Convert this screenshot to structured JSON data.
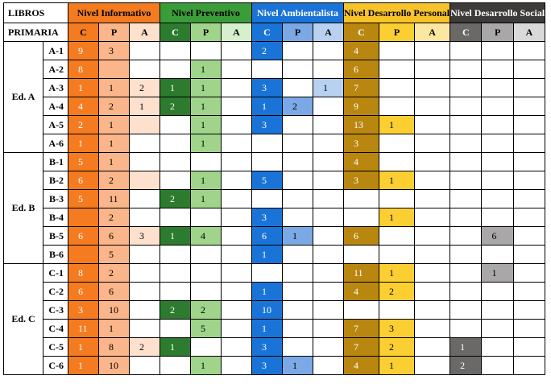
{
  "header": {
    "corner_top": "LIBROS",
    "corner_bottom": "PRIMARIA",
    "levels": [
      {
        "title": "Nivel Informativo",
        "title_bg": "#f47b20",
        "title_fg": "#000000",
        "subs": [
          "C",
          "P",
          "A"
        ],
        "sub_bg": [
          "#f47b20",
          "#fbb58a",
          "#fde0cd"
        ],
        "sub_fg": [
          "#000000",
          "#000000",
          "#000000"
        ],
        "cell_bg": [
          "#f47b20",
          "#fbb58a",
          "#fde0cd"
        ],
        "cell_fg": [
          "#ffffff",
          "#000000",
          "#000000"
        ]
      },
      {
        "title": "Nivel Preventivo",
        "title_bg": "#3b9c3a",
        "title_fg": "#000000",
        "subs": [
          "C",
          "P",
          "A"
        ],
        "sub_bg": [
          "#2d7b2e",
          "#9fd48a",
          "#d6efcc"
        ],
        "sub_fg": [
          "#ffffff",
          "#000000",
          "#000000"
        ],
        "cell_bg": [
          "#2d7b2e",
          "#9fd48a",
          "#d6efcc"
        ],
        "cell_fg": [
          "#ffffff",
          "#000000",
          "#000000"
        ]
      },
      {
        "title": "Nivel Ambientalista",
        "title_bg": "#1a74d8",
        "title_fg": "#ffffff",
        "subs": [
          "C",
          "P",
          "A"
        ],
        "sub_bg": [
          "#1a74d8",
          "#7ba9e6",
          "#b8d1f1"
        ],
        "sub_fg": [
          "#ffffff",
          "#000000",
          "#000000"
        ],
        "cell_bg": [
          "#1a74d8",
          "#7ba9e6",
          "#b8d1f1"
        ],
        "cell_fg": [
          "#ffffff",
          "#000000",
          "#000000"
        ]
      },
      {
        "title": "Nivel Desarrollo Personal",
        "title_bg": "#f8c22a",
        "title_fg": "#000000",
        "subs": [
          "C",
          "P",
          "A"
        ],
        "sub_bg": [
          "#b9860f",
          "#fbce32",
          "#fde7a0"
        ],
        "sub_fg": [
          "#ffffff",
          "#000000",
          "#000000"
        ],
        "cell_bg": [
          "#b9860f",
          "#fbce32",
          "#fde7a0"
        ],
        "cell_fg": [
          "#ffffff",
          "#000000",
          "#000000"
        ]
      },
      {
        "title": "Nivel Desarrollo Social",
        "title_bg": "#3d3a3a",
        "title_fg": "#ffffff",
        "subs": [
          "C",
          "P",
          "A"
        ],
        "sub_bg": [
          "#6b6868",
          "#a9a7a7",
          "#d9d9d9"
        ],
        "sub_fg": [
          "#ffffff",
          "#000000",
          "#000000"
        ],
        "cell_bg": [
          "#6b6868",
          "#a9a7a7",
          "#d9d9d9"
        ],
        "cell_fg": [
          "#ffffff",
          "#000000",
          "#000000"
        ]
      }
    ]
  },
  "groups": [
    {
      "label": "Ed. A",
      "rows": [
        {
          "id": "A-1",
          "v": [
            "9",
            "3",
            "",
            "",
            "",
            "",
            "2",
            "",
            "",
            "4",
            "",
            "",
            "",
            "",
            ""
          ]
        },
        {
          "id": "A-2",
          "v": [
            "8",
            "",
            "",
            "",
            "1",
            "",
            "",
            "",
            "",
            "6",
            "",
            "",
            "",
            "",
            ""
          ]
        },
        {
          "id": "A-3",
          "v": [
            "1",
            "1",
            "2",
            "1",
            "1",
            "",
            "3",
            "",
            "1",
            "7",
            "",
            "",
            "",
            "",
            ""
          ]
        },
        {
          "id": "A-4",
          "v": [
            "4",
            "2",
            "1",
            "2",
            "1",
            "",
            "1",
            "2",
            "",
            "9",
            "",
            "",
            "",
            "",
            ""
          ]
        },
        {
          "id": "A-5",
          "v": [
            "2",
            "1",
            "",
            "",
            "1",
            "",
            "3",
            "",
            "",
            "13",
            "1",
            "",
            "",
            "",
            ""
          ]
        },
        {
          "id": "A-6",
          "v": [
            "1",
            "1",
            "",
            "",
            "1",
            "",
            "",
            "",
            "",
            "3",
            "",
            "",
            "",
            "",
            ""
          ]
        }
      ]
    },
    {
      "label": "Ed. B",
      "rows": [
        {
          "id": "B-1",
          "v": [
            "5",
            "1",
            "",
            "",
            "",
            "",
            "",
            "",
            "",
            "4",
            "",
            "",
            "",
            "",
            ""
          ]
        },
        {
          "id": "B-2",
          "v": [
            "6",
            "2",
            "",
            "",
            "1",
            "",
            "5",
            "",
            "",
            "3",
            "1",
            "",
            "",
            "",
            ""
          ]
        },
        {
          "id": "B-3",
          "v": [
            "5",
            "11",
            "",
            "2",
            "1",
            "",
            "",
            "",
            "",
            "",
            "",
            "",
            "",
            "",
            ""
          ]
        },
        {
          "id": "B-4",
          "v": [
            "",
            "2",
            "",
            "",
            "",
            "",
            "3",
            "",
            "",
            "",
            "1",
            "",
            "",
            "",
            ""
          ]
        },
        {
          "id": "B-5",
          "v": [
            "6",
            "6",
            "3",
            "1",
            "4",
            "",
            "6",
            "1",
            "",
            "6",
            "",
            "",
            "",
            "6",
            ""
          ]
        },
        {
          "id": "B-6",
          "v": [
            "",
            "5",
            "",
            "",
            "",
            "",
            "1",
            "",
            "",
            "",
            "",
            "",
            "",
            "",
            ""
          ]
        }
      ]
    },
    {
      "label": "Ed. C",
      "rows": [
        {
          "id": "C-1",
          "v": [
            "8",
            "2",
            "",
            "",
            "",
            "",
            "",
            "",
            "",
            "11",
            "1",
            "",
            "",
            "1",
            ""
          ]
        },
        {
          "id": "C-2",
          "v": [
            "6",
            "6",
            "",
            "",
            "",
            "",
            "1",
            "",
            "",
            "4",
            "2",
            "",
            "",
            "",
            ""
          ]
        },
        {
          "id": "C-3",
          "v": [
            "3",
            "10",
            "",
            "2",
            "2",
            "",
            "10",
            "",
            "",
            "",
            "",
            "",
            "",
            "",
            ""
          ]
        },
        {
          "id": "C-4",
          "v": [
            "11",
            "1",
            "",
            "",
            "5",
            "",
            "1",
            "",
            "",
            "7",
            "3",
            "",
            "",
            "",
            ""
          ]
        },
        {
          "id": "C-5",
          "v": [
            "1",
            "8",
            "2",
            "1",
            "",
            "",
            "3",
            "",
            "",
            "7",
            "2",
            "",
            "1",
            "",
            ""
          ]
        },
        {
          "id": "C-6",
          "v": [
            "1",
            "10",
            "",
            "",
            "1",
            "",
            "3",
            "1",
            "",
            "4",
            "1",
            "",
            "2",
            "",
            ""
          ]
        }
      ]
    }
  ],
  "fill_rules": {
    "colored_when_empty": [
      [
        "A-2",
        1
      ],
      [
        "A-5",
        2
      ],
      [
        "B-4",
        0
      ],
      [
        "B-6",
        0
      ],
      [
        "B-2",
        2
      ]
    ]
  }
}
